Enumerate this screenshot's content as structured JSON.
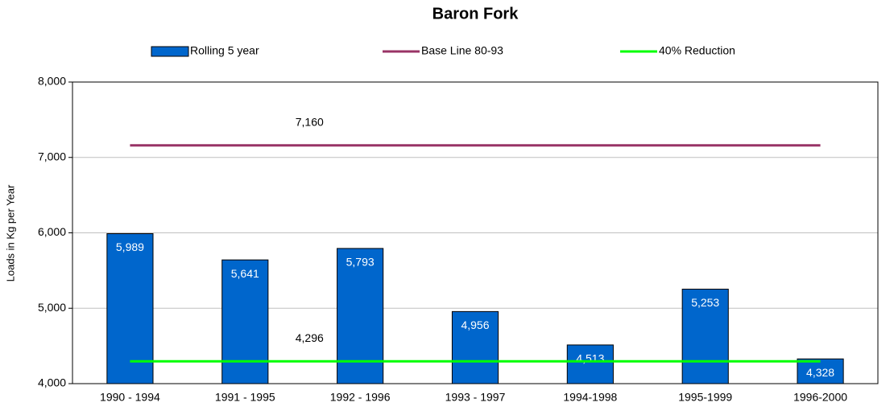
{
  "chart_data": {
    "type": "bar",
    "title": "Baron Fork",
    "ylabel": "Loads in Kg per Year",
    "categories": [
      "1990 - 1994",
      "1991 - 1995",
      "1992 - 1996",
      "1993 - 1997",
      "1994-1998",
      "1995-1999",
      "1996-2000"
    ],
    "series": [
      {
        "name": "Rolling 5 year",
        "type": "bar",
        "color": "#0066cc",
        "values": [
          5989,
          5641,
          5793,
          4956,
          4513,
          5253,
          4328
        ],
        "value_labels": [
          "5,989",
          "5,641",
          "5,793",
          "4,956",
          "4,513",
          "5,253",
          "4,328"
        ]
      },
      {
        "name": "Base Line 80-93",
        "type": "line",
        "color": "#993366",
        "values": [
          7160,
          7160,
          7160,
          7160,
          7160,
          7160,
          7160
        ],
        "value_labels": [
          null,
          "7,160",
          null,
          null,
          null,
          null,
          null
        ]
      },
      {
        "name": "40% Reduction",
        "type": "line",
        "color": "#00ff00",
        "values": [
          4296,
          4296,
          4296,
          4296,
          4296,
          4296,
          4296
        ],
        "value_labels": [
          null,
          "4,296",
          null,
          null,
          null,
          null,
          null
        ]
      }
    ],
    "ylim": [
      4000,
      8000
    ],
    "yticks": [
      {
        "value": 4000,
        "label": "4,000"
      },
      {
        "value": 5000,
        "label": "5,000"
      },
      {
        "value": 6000,
        "label": "6,000"
      },
      {
        "value": 7000,
        "label": "7,000"
      },
      {
        "value": 8000,
        "label": "8,000"
      }
    ],
    "grid": true,
    "legend": "top"
  }
}
